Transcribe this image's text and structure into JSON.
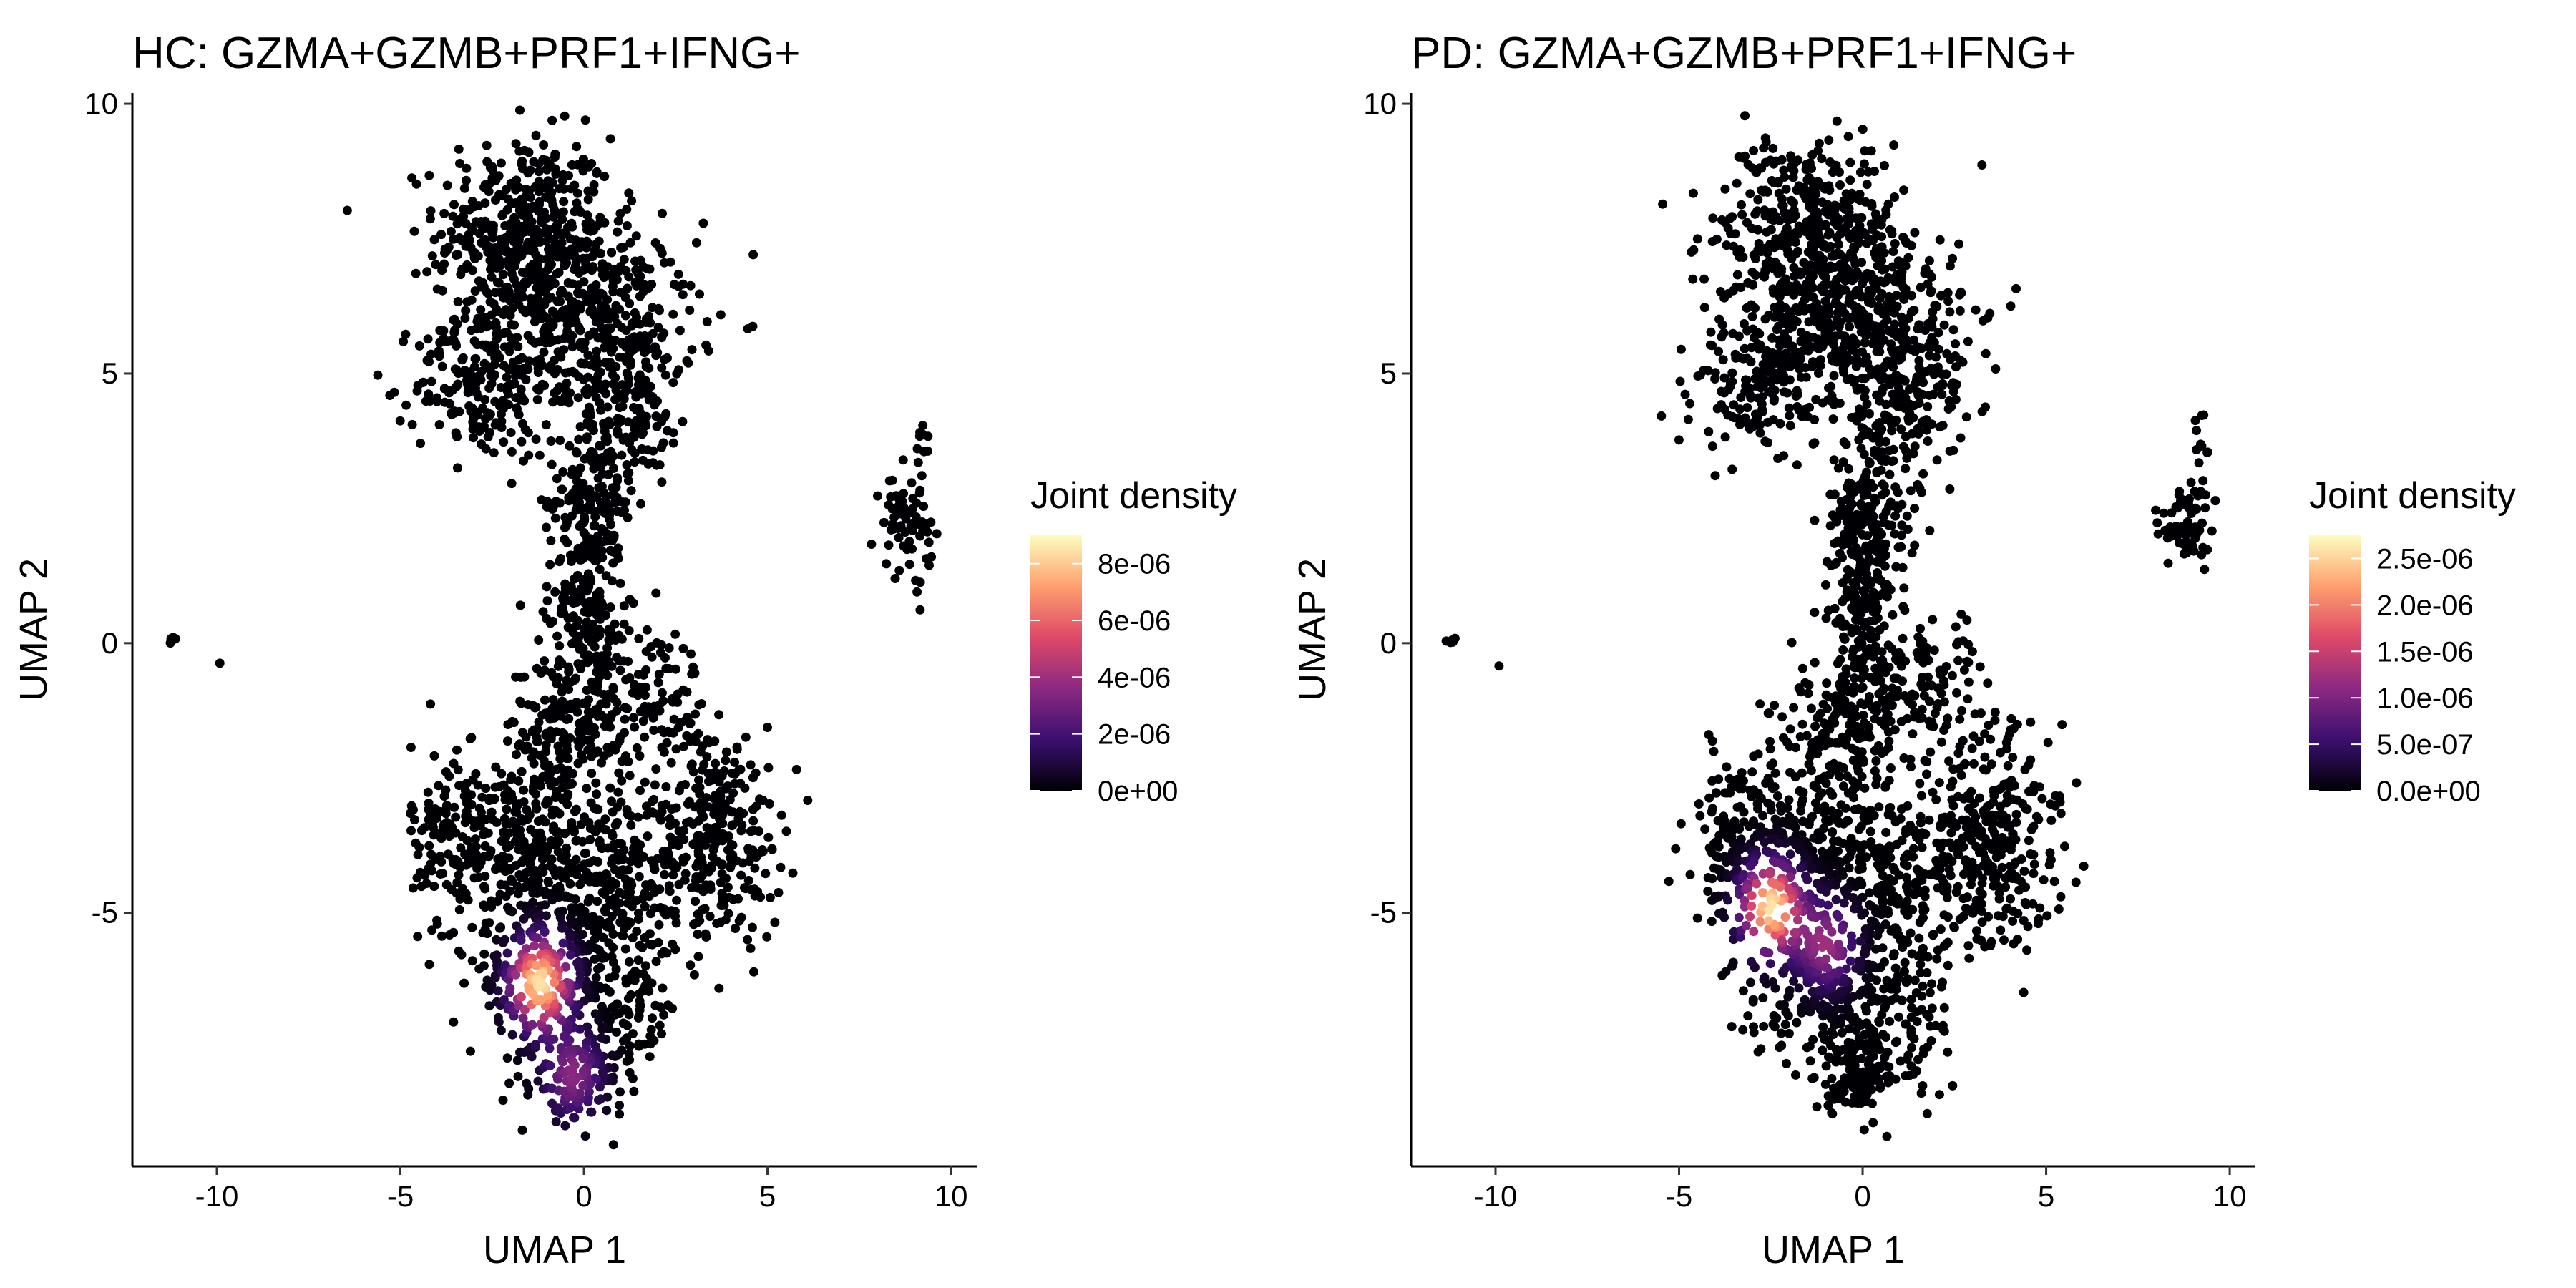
{
  "chart_data": [
    {
      "type": "scatter",
      "title": "HC: GZMA+GZMB+PRF1+IFNG+",
      "xlabel": "UMAP 1",
      "ylabel": "UMAP 2",
      "xlim": [
        -12.3,
        10.7
      ],
      "ylim": [
        -9.7,
        10.2
      ],
      "x_ticks": [
        -10,
        -5,
        0,
        5,
        10
      ],
      "x_tick_labels": [
        "-10",
        "-5",
        "0",
        "5",
        "10"
      ],
      "y_ticks": [
        -5,
        0,
        5,
        10
      ],
      "y_tick_labels": [
        "-5",
        "0",
        "5",
        "10"
      ],
      "grid": false,
      "legend": {
        "title": "Joint density",
        "placement": "right",
        "colorbar_max": 9e-06,
        "ticks": [
          0,
          2e-06,
          4e-06,
          6e-06,
          8e-06
        ],
        "tick_labels": [
          "0e+00",
          "2e-06",
          "4e-06",
          "6e-06",
          "8e-06"
        ]
      },
      "colorscale": [
        "#000004",
        "#3b0f70",
        "#8c2981",
        "#de4968",
        "#fe9f6d",
        "#fcfdbf"
      ],
      "hotspots": [
        {
          "x": -1.2,
          "y": -6.3,
          "density": 8.5e-06
        },
        {
          "x": -0.3,
          "y": -8.0,
          "density": 3.5e-06
        }
      ]
    },
    {
      "type": "scatter",
      "title": "PD: GZMA+GZMB+PRF1+IFNG+",
      "xlabel": "UMAP 1",
      "ylabel": "UMAP 2",
      "xlim": [
        -12.3,
        10.7
      ],
      "ylim": [
        -9.7,
        10.2
      ],
      "x_ticks": [
        -10,
        -5,
        0,
        5,
        10
      ],
      "x_tick_labels": [
        "-10",
        "-5",
        "0",
        "5",
        "10"
      ],
      "y_ticks": [
        -5,
        0,
        5,
        10
      ],
      "y_tick_labels": [
        "-5",
        "0",
        "5",
        "10"
      ],
      "grid": false,
      "legend": {
        "title": "Joint density",
        "placement": "right",
        "colorbar_max": 2.75e-06,
        "ticks": [
          0,
          5e-07,
          1e-06,
          1.5e-06,
          2e-06,
          2.5e-06
        ],
        "tick_labels": [
          "0.0e+00",
          "5.0e-07",
          "1.0e-06",
          "1.5e-06",
          "2.0e-06",
          "2.5e-06"
        ]
      },
      "colorscale": [
        "#000004",
        "#3b0f70",
        "#8c2981",
        "#de4968",
        "#fe9f6d",
        "#fcfdbf"
      ],
      "hotspots": [
        {
          "x": -2.5,
          "y": -4.9,
          "density": 2.6e-06
        },
        {
          "x": -1.0,
          "y": -5.6,
          "density": 1.2e-06
        }
      ]
    }
  ]
}
